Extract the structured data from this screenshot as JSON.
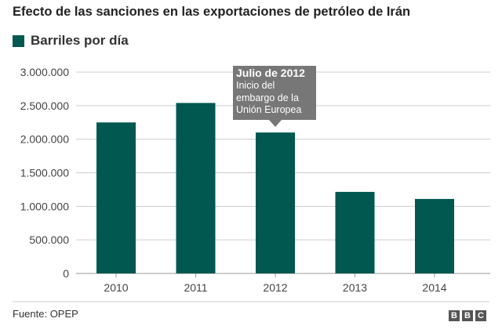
{
  "chart_data": {
    "type": "bar",
    "title": "Efecto de las sanciones en las exportaciones de petróleo de Irán",
    "legend": [
      "Barriles por día"
    ],
    "categories": [
      "2010",
      "2011",
      "2012",
      "2013",
      "2014"
    ],
    "values": [
      2250000,
      2540000,
      2100000,
      1215000,
      1110000
    ],
    "ylim": [
      0,
      3000000
    ],
    "yticks": [
      0,
      500000,
      1000000,
      1500000,
      2000000,
      2500000,
      3000000
    ],
    "ytick_labels": [
      "0",
      "500.000",
      "1.000.000",
      "1.500.000",
      "2.000.000",
      "2.500.000",
      "3.000.000"
    ],
    "xlabel": "",
    "ylabel": "",
    "grid": true,
    "color": "#005850",
    "annotation": {
      "category": "2012",
      "title": "Julio de 2012",
      "text": "Inicio del embargo de la Unión Europea"
    }
  },
  "footer": {
    "source": "Fuente: OPEP",
    "logo": [
      "B",
      "B",
      "C"
    ]
  }
}
